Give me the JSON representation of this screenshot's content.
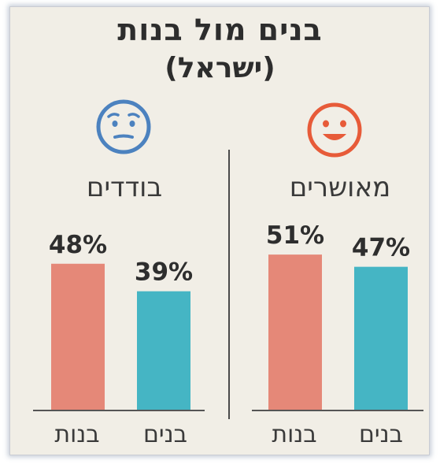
{
  "header": {
    "title": "בנים מול בנות",
    "subtitle": "(ישראל)"
  },
  "colors": {
    "girls_bar": "#e58878",
    "boys_bar": "#45b5c4",
    "happy_face": "#e75b39",
    "lonely_face": "#4c82bf"
  },
  "icons": {
    "happy": "smiling-face-icon",
    "lonely": "worried-face-icon"
  },
  "chart_data": [
    {
      "type": "bar",
      "group_label": "מאושרים",
      "categories": [
        "בנים",
        "בנות"
      ],
      "values": [
        47,
        51
      ],
      "value_labels": [
        "47%",
        "51%"
      ],
      "ylim": [
        0,
        60
      ]
    },
    {
      "type": "bar",
      "group_label": "בודדים",
      "categories": [
        "בנים",
        "בנות"
      ],
      "values": [
        39,
        48
      ],
      "value_labels": [
        "39%",
        "48%"
      ],
      "ylim": [
        0,
        60
      ]
    }
  ]
}
